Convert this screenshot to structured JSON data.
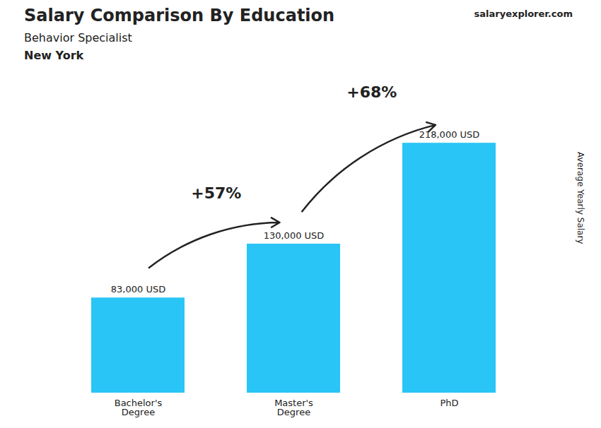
{
  "chart_data": {
    "type": "bar",
    "title": "Salary Comparison By Education",
    "subtitle": "Behavior Specialist",
    "categories": [
      "Bachelor's\nDegree",
      "Master's\nDegree",
      "PhD"
    ],
    "values": [
      83000,
      130000,
      218000
    ],
    "value_labels": [
      "83,000 USD",
      "130,000 USD",
      "218,000 USD"
    ],
    "data_labels": true,
    "color": "#29c5f6",
    "ylim": [
      0,
      260000
    ],
    "ylabel": "Average Yearly Salary",
    "tick_labels": "x",
    "grid": false,
    "annotations": [
      {
        "text": "New York"
      },
      {
        "text": "salaryexplorer.com"
      },
      {
        "text": "+57%",
        "from": "Bachelor's\nDegree",
        "to": "Master's\nDegree"
      },
      {
        "text": "+68%",
        "from": "Master's\nDegree",
        "to": "PhD"
      }
    ]
  }
}
